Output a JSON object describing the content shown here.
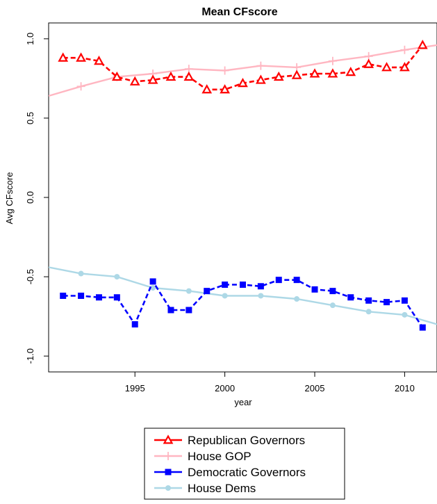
{
  "chart_data": {
    "type": "line",
    "title": "Mean CFscore",
    "xlabel": "year",
    "ylabel": "Avg CFscore",
    "xlim": [
      1990.2,
      2011.8
    ],
    "ylim": [
      -1.1,
      1.1
    ],
    "xticks": [
      1995,
      2000,
      2005,
      2010
    ],
    "yticks": [
      1.0,
      0.5,
      0.0,
      -0.5,
      -1.0
    ],
    "ytick_labels": [
      "1.0",
      "0.5",
      "0.0",
      "-0.5",
      "-1.0"
    ],
    "grid": false,
    "legend": "below",
    "series": [
      {
        "name": "Republican Governors",
        "color": "#ff0000",
        "marker": "triangle",
        "line": "dashed",
        "x": [
          1991,
          1992,
          1993,
          1994,
          1995,
          1996,
          1997,
          1998,
          1999,
          2000,
          2001,
          2002,
          2003,
          2004,
          2005,
          2006,
          2007,
          2008,
          2009,
          2010,
          2011
        ],
        "y": [
          0.88,
          0.88,
          0.86,
          0.76,
          0.73,
          0.74,
          0.76,
          0.76,
          0.68,
          0.68,
          0.72,
          0.74,
          0.76,
          0.77,
          0.78,
          0.78,
          0.79,
          0.84,
          0.82,
          0.82,
          0.96
        ]
      },
      {
        "name": "House GOP",
        "color": "#ffb6c1",
        "marker": "plus",
        "line": "solid",
        "x": [
          1992,
          1994,
          1996,
          1998,
          2000,
          2002,
          2004,
          2006,
          2008,
          2010
        ],
        "y": [
          0.7,
          0.76,
          0.78,
          0.81,
          0.8,
          0.83,
          0.82,
          0.86,
          0.89,
          0.93
        ],
        "x_extend": [
          1990.2,
          2011.8
        ],
        "y_extend": [
          0.64,
          0.96
        ]
      },
      {
        "name": "Democratic Governors",
        "color": "#0000ff",
        "marker": "square",
        "line": "dashed",
        "x": [
          1991,
          1992,
          1993,
          1994,
          1995,
          1996,
          1997,
          1998,
          1999,
          2000,
          2001,
          2002,
          2003,
          2004,
          2005,
          2006,
          2007,
          2008,
          2009,
          2010,
          2011
        ],
        "y": [
          -0.62,
          -0.62,
          -0.63,
          -0.63,
          -0.8,
          -0.53,
          -0.71,
          -0.71,
          -0.59,
          -0.55,
          -0.55,
          -0.56,
          -0.52,
          -0.52,
          -0.58,
          -0.59,
          -0.63,
          -0.65,
          -0.66,
          -0.65,
          -0.82
        ]
      },
      {
        "name": "House Dems",
        "color": "#add8e6",
        "marker": "circle",
        "line": "solid",
        "x": [
          1992,
          1994,
          1996,
          1998,
          2000,
          2002,
          2004,
          2006,
          2008,
          2010
        ],
        "y": [
          -0.48,
          -0.5,
          -0.57,
          -0.59,
          -0.62,
          -0.62,
          -0.64,
          -0.68,
          -0.72,
          -0.74
        ],
        "x_extend": [
          1990.2,
          2011.8
        ],
        "y_extend": [
          -0.44,
          -0.8
        ]
      }
    ]
  }
}
